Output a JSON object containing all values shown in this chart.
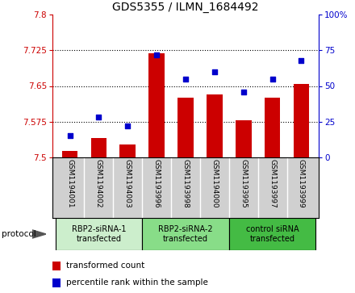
{
  "title": "GDS5355 / ILMN_1684492",
  "samples": [
    "GSM1194001",
    "GSM1194002",
    "GSM1194003",
    "GSM1193996",
    "GSM1193998",
    "GSM1194000",
    "GSM1193995",
    "GSM1193997",
    "GSM1193999"
  ],
  "bar_values": [
    7.513,
    7.541,
    7.527,
    7.718,
    7.625,
    7.632,
    7.578,
    7.625,
    7.655
  ],
  "dot_values": [
    15,
    28,
    22,
    72,
    55,
    60,
    46,
    55,
    68
  ],
  "ylim_left": [
    7.5,
    7.8
  ],
  "ylim_right": [
    0,
    100
  ],
  "yticks_left": [
    7.5,
    7.575,
    7.65,
    7.725,
    7.8
  ],
  "yticks_right": [
    0,
    25,
    50,
    75,
    100
  ],
  "ytick_labels_left": [
    "7.5",
    "7.575",
    "7.65",
    "7.725",
    "7.8"
  ],
  "ytick_labels_right": [
    "0",
    "25",
    "50",
    "75",
    "100%"
  ],
  "bar_color": "#cc0000",
  "dot_color": "#0000cc",
  "bar_bottom": 7.5,
  "groups": [
    {
      "label": "RBP2-siRNA-1\ntransfected",
      "start": 0,
      "end": 3,
      "facecolor": "#cceecc"
    },
    {
      "label": "RBP2-siRNA-2\ntransfected",
      "start": 3,
      "end": 6,
      "facecolor": "#88dd88"
    },
    {
      "label": "control siRNA\ntransfected",
      "start": 6,
      "end": 9,
      "facecolor": "#44bb44"
    }
  ],
  "legend_bar_label": "transformed count",
  "legend_dot_label": "percentile rank within the sample",
  "protocol_label": "protocol",
  "bar_width": 0.55,
  "sample_bg_color": "#d0d0d0",
  "sample_border_color": "#aaaaaa"
}
